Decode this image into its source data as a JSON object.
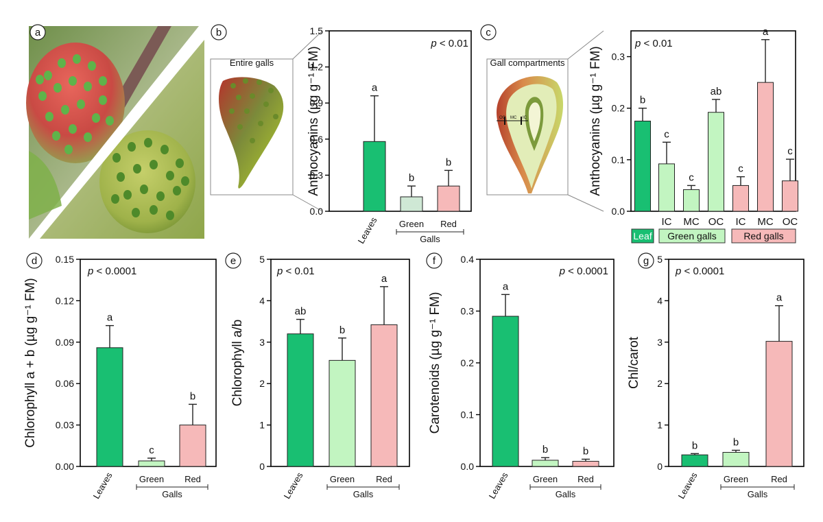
{
  "colors": {
    "leaves": "#19bf72",
    "green_galls": "#c2f5c1",
    "green_galls_b": "#cfe8d5",
    "red_galls": "#f6b9b9",
    "leaf_dark": "#2a7a3a",
    "gall_red": "#d9534a"
  },
  "panel_letters": [
    "a",
    "b",
    "c",
    "d",
    "e",
    "f",
    "g"
  ],
  "illustrations": {
    "entire_galls_label": "Entire galls",
    "gall_compartments_label": "Gall compartments",
    "compartment_labels": [
      "OC",
      "MC",
      "IC"
    ]
  },
  "chart_data": [
    {
      "panel": "b",
      "type": "bar",
      "ylabel": "Anthocyanins (µg g⁻¹ FM)",
      "ylim": [
        0,
        1.5
      ],
      "yticks": [
        "0.0",
        "0.3",
        "0.6",
        "0.9",
        "1.2",
        "1.5"
      ],
      "p_text": "p < 0.01",
      "categories": [
        "Leaves",
        "Green",
        "Red"
      ],
      "group_label": "Galls",
      "values": [
        0.58,
        0.12,
        0.21
      ],
      "errors": [
        0.38,
        0.09,
        0.13
      ],
      "letters": [
        "a",
        "b",
        "b"
      ]
    },
    {
      "panel": "c",
      "type": "bar",
      "ylabel": "Anthocyanins (µg g⁻¹ FM)",
      "ylim": [
        0,
        0.35
      ],
      "yticks": [
        "0.0",
        "0.1",
        "0.2",
        "0.3"
      ],
      "p_text": "p < 0.01",
      "categories": [
        "Leaf",
        "IC",
        "MC",
        "OC",
        "IC",
        "MC",
        "OC"
      ],
      "groups": [
        "Leaf",
        "Green galls",
        "Red galls"
      ],
      "values": [
        0.175,
        0.092,
        0.042,
        0.192,
        0.05,
        0.25,
        0.059
      ],
      "errors": [
        0.025,
        0.042,
        0.008,
        0.025,
        0.017,
        0.083,
        0.042
      ],
      "letters": [
        "b",
        "c",
        "c",
        "ab",
        "c",
        "a",
        "c"
      ]
    },
    {
      "panel": "d",
      "type": "bar",
      "ylabel": "Chlorophyll a + b (µg g⁻¹ FM)",
      "ylim": [
        0,
        0.15
      ],
      "yticks": [
        "0.00",
        "0.03",
        "0.06",
        "0.09",
        "0.12",
        "0.15"
      ],
      "p_text": "p < 0.0001",
      "categories": [
        "Leaves",
        "Green",
        "Red"
      ],
      "group_label": "Galls",
      "values": [
        0.086,
        0.004,
        0.03
      ],
      "errors": [
        0.016,
        0.002,
        0.015
      ],
      "letters": [
        "a",
        "c",
        "b"
      ]
    },
    {
      "panel": "e",
      "type": "bar",
      "ylabel": "Chlorophyll a/b",
      "ylim": [
        0,
        5
      ],
      "yticks": [
        "0",
        "1",
        "2",
        "3",
        "4",
        "5"
      ],
      "p_text": "p < 0.01",
      "categories": [
        "Leaves",
        "Green",
        "Red"
      ],
      "group_label": "Galls",
      "values": [
        3.2,
        2.56,
        3.42
      ],
      "errors": [
        0.35,
        0.54,
        0.92
      ],
      "letters": [
        "ab",
        "b",
        "a"
      ]
    },
    {
      "panel": "f",
      "type": "bar",
      "ylabel": "Carotenoids (µg g⁻¹ FM)",
      "ylim": [
        0,
        0.4
      ],
      "yticks": [
        "0.0",
        "0.1",
        "0.2",
        "0.3",
        "0.4"
      ],
      "p_text": "p < 0.0001",
      "categories": [
        "Leaves",
        "Green",
        "Red"
      ],
      "group_label": "Galls",
      "values": [
        0.29,
        0.012,
        0.01
      ],
      "errors": [
        0.042,
        0.005,
        0.004
      ],
      "letters": [
        "a",
        "b",
        "b"
      ]
    },
    {
      "panel": "g",
      "type": "bar",
      "ylabel": "Chl/carot",
      "ylim": [
        0,
        5
      ],
      "yticks": [
        "0",
        "1",
        "2",
        "3",
        "4",
        "5"
      ],
      "p_text": "p < 0.0001",
      "categories": [
        "Leaves",
        "Green",
        "Red"
      ],
      "group_label": "Galls",
      "values": [
        0.28,
        0.34,
        3.02
      ],
      "errors": [
        0.03,
        0.05,
        0.86
      ],
      "letters": [
        "b",
        "b",
        "a"
      ]
    }
  ]
}
